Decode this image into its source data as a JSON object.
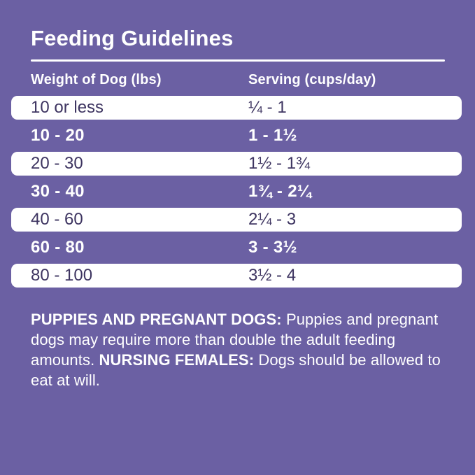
{
  "page": {
    "background_color": "#6b60a3",
    "row_white_color": "#ffffff",
    "row_text_dark_color": "#3e3561"
  },
  "title": "Feeding Guidelines",
  "table": {
    "headers": {
      "weight": "Weight of Dog (lbs)",
      "serving": "Serving (cups/day)"
    },
    "rows": [
      {
        "weight": "10 or less",
        "serving": "¼ - 1",
        "style": "white"
      },
      {
        "weight": "10 - 20",
        "serving": "1 - 1½",
        "style": "purple"
      },
      {
        "weight": "20 - 30",
        "serving": "1½ - 1¾",
        "style": "white"
      },
      {
        "weight": "30 - 40",
        "serving": "1¾ - 2¼",
        "style": "purple"
      },
      {
        "weight": "40 - 60",
        "serving": "2¼ - 3",
        "style": "white"
      },
      {
        "weight": "60 - 80",
        "serving": "3 - 3½",
        "style": "purple"
      },
      {
        "weight": "80 - 100",
        "serving": "3½ - 4",
        "style": "white"
      }
    ]
  },
  "note": {
    "segments": [
      {
        "text": "PUPPIES AND PREGNANT DOGS: ",
        "bold": true
      },
      {
        "text": "Puppies and pregnant dogs may require more than double the adult feeding amounts. ",
        "bold": false
      },
      {
        "text": "NURSING FEMALES: ",
        "bold": true
      },
      {
        "text": "Dogs should be allowed to eat at will.",
        "bold": false
      }
    ]
  }
}
